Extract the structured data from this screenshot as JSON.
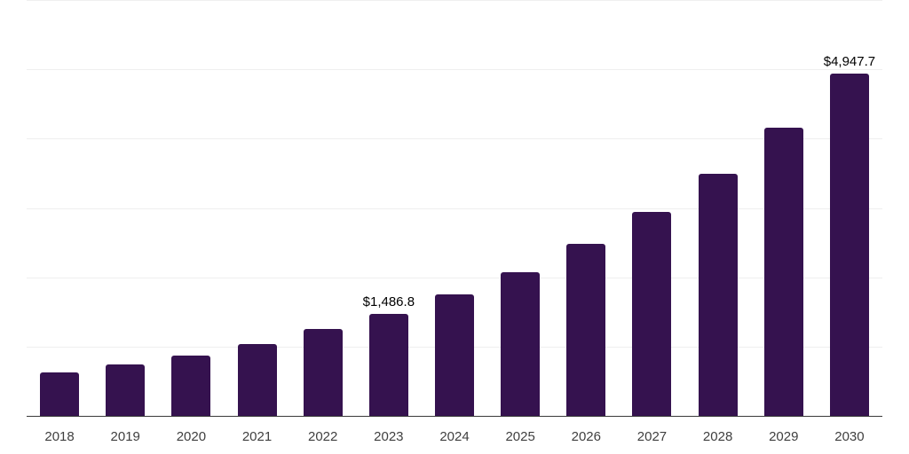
{
  "chart_data": {
    "type": "bar",
    "title": "",
    "xlabel": "",
    "ylabel": "",
    "categories": [
      "2018",
      "2019",
      "2020",
      "2021",
      "2022",
      "2023",
      "2024",
      "2025",
      "2026",
      "2027",
      "2028",
      "2029",
      "2030"
    ],
    "values": [
      635,
      750,
      885,
      1050,
      1265,
      1486.8,
      1768,
      2088,
      2493,
      2955,
      3507,
      4167,
      4947.7
    ],
    "annotations": [
      {
        "category": "2023",
        "text": "$1,486.8"
      },
      {
        "category": "2030",
        "text": "$4,947.7"
      }
    ],
    "ylim": [
      0,
      6000
    ],
    "gridline_step": 1000,
    "grid": true,
    "legend": false,
    "bar_color": "#35124F",
    "gridline_color": "#EFEFEF",
    "axis_line_color": "#3A3A3A",
    "tick_label_color": "#3F3F3F",
    "annotation_color": "#000000"
  }
}
